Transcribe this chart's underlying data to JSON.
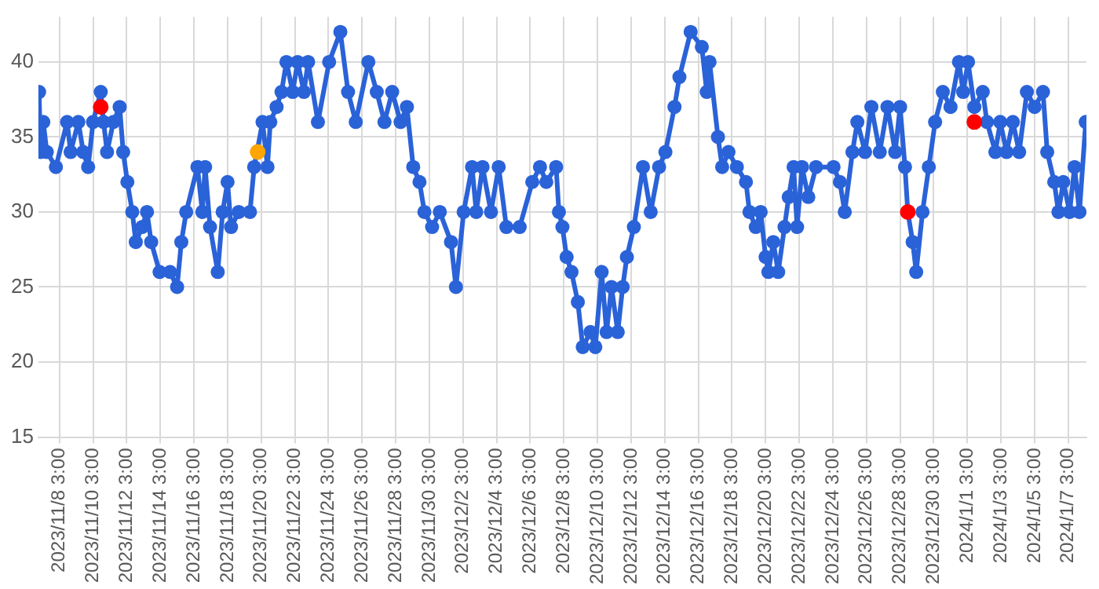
{
  "chart_data": {
    "type": "line",
    "marker": "circle",
    "grid": true,
    "legend": false,
    "xlim": [
      "2023-11-06T21:00",
      "2024-01-08T05:00"
    ],
    "ylim": [
      15,
      43
    ],
    "yticks": [
      15,
      20,
      25,
      30,
      35,
      40
    ],
    "xticks": [
      {
        "value": "2023-11-08T03:00",
        "label": "2023/11/8 3:00"
      },
      {
        "value": "2023-11-10T03:00",
        "label": "2023/11/10 3:00"
      },
      {
        "value": "2023-11-12T03:00",
        "label": "2023/11/12 3:00"
      },
      {
        "value": "2023-11-14T03:00",
        "label": "2023/11/14 3:00"
      },
      {
        "value": "2023-11-16T03:00",
        "label": "2023/11/16 3:00"
      },
      {
        "value": "2023-11-18T03:00",
        "label": "2023/11/18 3:00"
      },
      {
        "value": "2023-11-20T03:00",
        "label": "2023/11/20 3:00"
      },
      {
        "value": "2023-11-22T03:00",
        "label": "2023/11/22 3:00"
      },
      {
        "value": "2023-11-24T03:00",
        "label": "2023/11/24 3:00"
      },
      {
        "value": "2023-11-26T03:00",
        "label": "2023/11/26 3:00"
      },
      {
        "value": "2023-11-28T03:00",
        "label": "2023/11/28 3:00"
      },
      {
        "value": "2023-11-30T03:00",
        "label": "2023/11/30 3:00"
      },
      {
        "value": "2023-12-02T03:00",
        "label": "2023/12/2 3:00"
      },
      {
        "value": "2023-12-04T03:00",
        "label": "2023/12/4 3:00"
      },
      {
        "value": "2023-12-06T03:00",
        "label": "2023/12/6 3:00"
      },
      {
        "value": "2023-12-08T03:00",
        "label": "2023/12/8 3:00"
      },
      {
        "value": "2023-12-10T03:00",
        "label": "2023/12/10 3:00"
      },
      {
        "value": "2023-12-12T03:00",
        "label": "2023/12/12 3:00"
      },
      {
        "value": "2023-12-14T03:00",
        "label": "2023/12/14 3:00"
      },
      {
        "value": "2023-12-16T03:00",
        "label": "2023/12/16 3:00"
      },
      {
        "value": "2023-12-18T03:00",
        "label": "2023/12/18 3:00"
      },
      {
        "value": "2023-12-20T03:00",
        "label": "2023/12/20 3:00"
      },
      {
        "value": "2023-12-22T03:00",
        "label": "2023/12/22 3:00"
      },
      {
        "value": "2023-12-24T03:00",
        "label": "2023/12/24 3:00"
      },
      {
        "value": "2023-12-26T03:00",
        "label": "2023/12/26 3:00"
      },
      {
        "value": "2023-12-28T03:00",
        "label": "2023/12/28 3:00"
      },
      {
        "value": "2023-12-30T03:00",
        "label": "2023/12/30 3:00"
      },
      {
        "value": "2024-01-01T03:00",
        "label": "2024/1/1 3:00"
      },
      {
        "value": "2024-01-03T03:00",
        "label": "2024/1/3 3:00"
      },
      {
        "value": "2024-01-05T03:00",
        "label": "2024/1/5 3:00"
      },
      {
        "value": "2024-01-07T03:00",
        "label": "2024/1/7 3:00"
      }
    ],
    "series": [
      {
        "color": "#2a62d8",
        "x": [
          "2023-11-06T22:00",
          "2023-11-07T00:00",
          "2023-11-07T04:00",
          "2023-11-07T09:00",
          "2023-11-07T22:00",
          "2023-11-08T14:00",
          "2023-11-08T19:00",
          "2023-11-09T06:00",
          "2023-11-09T13:00",
          "2023-11-09T20:00",
          "2023-11-10T03:00",
          "2023-11-10T14:00",
          "2023-11-10T18:00",
          "2023-11-10T23:00",
          "2023-11-11T08:00",
          "2023-11-11T17:00",
          "2023-11-11T22:00",
          "2023-11-12T04:00",
          "2023-11-12T11:00",
          "2023-11-12T16:00",
          "2023-11-13T01:00",
          "2023-11-13T08:00",
          "2023-11-13T14:00",
          "2023-11-14T02:00",
          "2023-11-14T17:00",
          "2023-11-15T03:00",
          "2023-11-15T09:00",
          "2023-11-15T16:00",
          "2023-11-16T08:00",
          "2023-11-16T15:00",
          "2023-11-16T19:00",
          "2023-11-17T02:00",
          "2023-11-17T13:00",
          "2023-11-17T20:00",
          "2023-11-18T03:00",
          "2023-11-18T08:00",
          "2023-11-18T19:00",
          "2023-11-19T11:00",
          "2023-11-19T17:00",
          "2023-11-20T05:00",
          "2023-11-20T12:00",
          "2023-11-20T16:00",
          "2023-11-21T01:00",
          "2023-11-21T08:00",
          "2023-11-21T15:00",
          "2023-11-22T00:00",
          "2023-11-22T07:00",
          "2023-11-22T16:00",
          "2023-11-22T22:00",
          "2023-11-23T12:00",
          "2023-11-24T04:00",
          "2023-11-24T20:00",
          "2023-11-25T07:00",
          "2023-11-25T18:00",
          "2023-11-26T12:00",
          "2023-11-27T00:00",
          "2023-11-27T11:00",
          "2023-11-27T22:00",
          "2023-11-28T10:00",
          "2023-11-28T19:00",
          "2023-11-29T04:00",
          "2023-11-29T13:00",
          "2023-11-29T20:00",
          "2023-11-30T07:00",
          "2023-11-30T18:00",
          "2023-12-01T10:00",
          "2023-12-01T17:00",
          "2023-12-02T04:00",
          "2023-12-02T16:00",
          "2023-12-02T22:00",
          "2023-12-03T07:00",
          "2023-12-03T19:00",
          "2023-12-04T06:00",
          "2023-12-04T17:00",
          "2023-12-05T12:00",
          "2023-12-06T06:00",
          "2023-12-06T17:00",
          "2023-12-07T02:00",
          "2023-12-07T16:00",
          "2023-12-07T20:00",
          "2023-12-08T01:00",
          "2023-12-08T07:00",
          "2023-12-08T14:00",
          "2023-12-08T23:00",
          "2023-12-09T06:00",
          "2023-12-09T17:00",
          "2023-12-10T00:00",
          "2023-12-10T09:00",
          "2023-12-10T16:00",
          "2023-12-10T23:00",
          "2023-12-11T08:00",
          "2023-12-11T15:00",
          "2023-12-11T21:00",
          "2023-12-12T07:00",
          "2023-12-12T20:00",
          "2023-12-13T07:00",
          "2023-12-13T19:00",
          "2023-12-14T04:00",
          "2023-12-14T17:00",
          "2023-12-15T00:00",
          "2023-12-15T16:00",
          "2023-12-16T08:00",
          "2023-12-16T15:00",
          "2023-12-16T19:00",
          "2023-12-17T07:00",
          "2023-12-17T13:00",
          "2023-12-17T22:00",
          "2023-12-18T10:00",
          "2023-12-18T23:00",
          "2023-12-19T04:00",
          "2023-12-19T13:00",
          "2023-12-19T20:00",
          "2023-12-20T03:00",
          "2023-12-20T07:00",
          "2023-12-20T14:00",
          "2023-12-20T21:00",
          "2023-12-21T06:00",
          "2023-12-21T12:00",
          "2023-12-21T19:00",
          "2023-12-22T00:00",
          "2023-12-22T07:00",
          "2023-12-22T16:00",
          "2023-12-23T03:00",
          "2023-12-24T04:00",
          "2023-12-24T13:00",
          "2023-12-24T20:00",
          "2023-12-25T07:00",
          "2023-12-25T14:00",
          "2023-12-26T01:00",
          "2023-12-26T10:00",
          "2023-12-26T22:00",
          "2023-12-27T09:00",
          "2023-12-27T20:00",
          "2023-12-28T03:00",
          "2023-12-28T10:00",
          "2023-12-28T14:00",
          "2023-12-28T21:00",
          "2023-12-29T02:00",
          "2023-12-29T11:00",
          "2023-12-29T20:00",
          "2023-12-30T05:00",
          "2023-12-30T16:00",
          "2023-12-31T03:00",
          "2023-12-31T15:00",
          "2023-12-31T21:00",
          "2024-01-01T04:00",
          "2024-01-01T13:00",
          "2024-01-02T01:00",
          "2024-01-02T07:00",
          "2024-01-02T19:00",
          "2024-01-03T02:00",
          "2024-01-03T11:00",
          "2024-01-03T20:00",
          "2024-01-04T05:00",
          "2024-01-04T16:00",
          "2024-01-05T03:00",
          "2024-01-05T15:00",
          "2024-01-05T21:00",
          "2024-01-06T07:00",
          "2024-01-06T13:00",
          "2024-01-06T20:00",
          "2024-01-07T05:00",
          "2024-01-07T12:00",
          "2024-01-07T19:00",
          "2024-01-08T04:00"
        ],
        "values": [
          38,
          34,
          36,
          34,
          33,
          36,
          34,
          36,
          34,
          33,
          36,
          38,
          36,
          34,
          36,
          37,
          34,
          32,
          30,
          28,
          29,
          30,
          28,
          26,
          26,
          25,
          28,
          30,
          33,
          30,
          33,
          29,
          26,
          30,
          32,
          29,
          30,
          30,
          33,
          36,
          33,
          36,
          37,
          38,
          40,
          38,
          40,
          38,
          40,
          36,
          40,
          42,
          38,
          36,
          40,
          38,
          36,
          38,
          36,
          37,
          33,
          32,
          30,
          29,
          30,
          28,
          25,
          30,
          33,
          30,
          33,
          30,
          33,
          29,
          29,
          32,
          33,
          32,
          33,
          30,
          29,
          27,
          26,
          24,
          21,
          22,
          21,
          26,
          22,
          25,
          22,
          25,
          27,
          29,
          33,
          30,
          33,
          34,
          37,
          39,
          42,
          41,
          38,
          40,
          35,
          33,
          34,
          33,
          32,
          30,
          29,
          30,
          27,
          26,
          28,
          26,
          29,
          31,
          33,
          29,
          33,
          31,
          33,
          33,
          32,
          30,
          34,
          36,
          34,
          37,
          34,
          37,
          34,
          37,
          33,
          30,
          28,
          26,
          30,
          33,
          36,
          38,
          37,
          40,
          38,
          40,
          37,
          38,
          36,
          34,
          36,
          34,
          36,
          34,
          38,
          37,
          38,
          34,
          32,
          30,
          32,
          30,
          33,
          30,
          36
        ]
      },
      {
        "type": "scatter",
        "x": [
          "2023-11-10T14:00",
          "2023-11-19T22:00",
          "2023-12-28T14:00",
          "2024-01-01T13:00"
        ],
        "values": [
          37,
          34,
          30,
          36
        ],
        "colors": [
          "#ff0000",
          "#ffa500",
          "#ff0000",
          "#ff0000"
        ]
      }
    ]
  }
}
